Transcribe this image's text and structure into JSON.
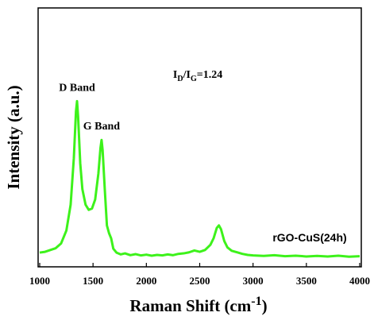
{
  "chart_data": {
    "type": "line",
    "x_label": {
      "text": "Raman Shift (cm",
      "superscript": "-1",
      "end": ")"
    },
    "y_label": "Intensity (a.u.)",
    "annotations": [
      {
        "text": "D Band",
        "x": 1350,
        "y": 68
      },
      {
        "text": "G Band",
        "x": 1580,
        "y": 53
      },
      {
        "parts": [
          "I",
          "D",
          "/I",
          "G",
          "=1.24"
        ],
        "x": 2250,
        "y": 73
      }
    ],
    "xlim": [
      1000,
      4000
    ],
    "xticks": [
      1000,
      1500,
      2000,
      2500,
      3000,
      3500,
      4000
    ],
    "ylim": [
      0,
      100
    ],
    "legend": "bottom-right",
    "series": [
      {
        "name": "rGO-CuS(24h)",
        "color": "#3df21b",
        "x": [
          1000,
          1050,
          1100,
          1150,
          1200,
          1250,
          1290,
          1320,
          1340,
          1350,
          1360,
          1380,
          1400,
          1430,
          1460,
          1490,
          1520,
          1550,
          1570,
          1580,
          1590,
          1610,
          1630,
          1650,
          1670,
          1690,
          1720,
          1760,
          1800,
          1850,
          1900,
          1950,
          2000,
          2050,
          2100,
          2150,
          2200,
          2250,
          2300,
          2350,
          2400,
          2450,
          2500,
          2550,
          2600,
          2630,
          2660,
          2680,
          2700,
          2730,
          2760,
          2800,
          2850,
          2900,
          2950,
          3000,
          3100,
          3200,
          3300,
          3400,
          3500,
          3600,
          3700,
          3800,
          3900,
          4000
        ],
        "values": [
          5.5,
          5.8,
          6.5,
          7.2,
          9,
          14,
          24,
          42,
          60,
          64,
          58,
          40,
          30,
          24,
          22,
          22.5,
          26,
          36,
          46,
          49,
          45,
          30,
          16,
          13,
          11,
          7,
          5.5,
          4.8,
          5.2,
          4.5,
          4.9,
          4.4,
          4.7,
          4.3,
          4.6,
          4.4,
          4.8,
          4.5,
          5,
          5.2,
          5.6,
          6.3,
          5.8,
          6.5,
          8.5,
          11,
          15,
          16,
          14.5,
          10,
          7.5,
          6.2,
          5.6,
          5,
          4.6,
          4.4,
          4.2,
          4.5,
          4.1,
          4.3,
          4,
          4.2,
          4,
          4.3,
          3.9,
          4.1
        ]
      }
    ]
  }
}
